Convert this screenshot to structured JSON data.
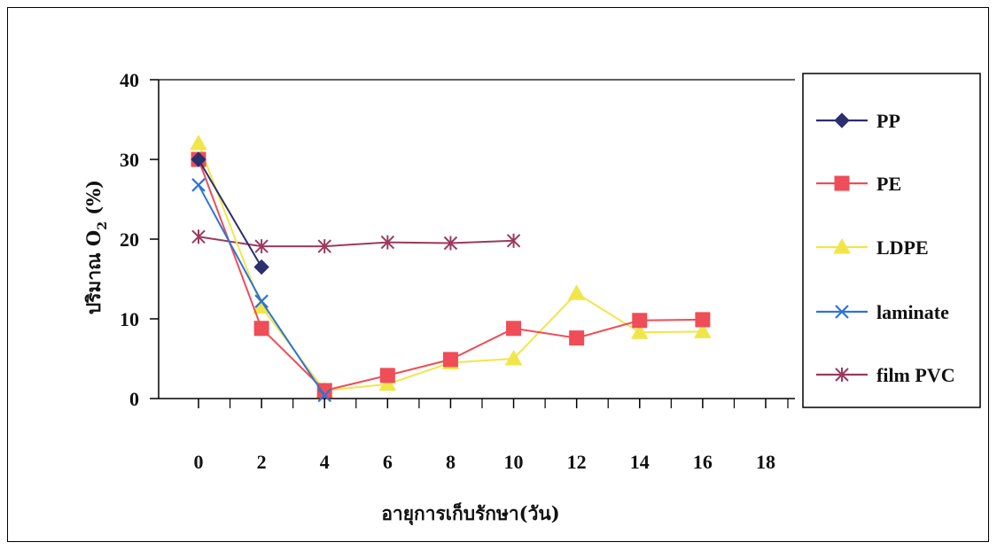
{
  "chart_data": {
    "type": "line",
    "title": "",
    "xlabel": "อายุการเก็บรักษา(วัน)",
    "ylabel_prefix": "ปริมาณ O",
    "ylabel_sub": "2",
    "ylabel_suffix": " (%)",
    "x_ticks": [
      "0",
      "2",
      "4",
      "6",
      "8",
      "10",
      "12",
      "14",
      "16",
      "18"
    ],
    "y_ticks": [
      "0",
      "10",
      "20",
      "30",
      "40"
    ],
    "xlim": [
      0,
      18
    ],
    "ylim": [
      0,
      40
    ],
    "grid": false,
    "legend_position": "right",
    "series": [
      {
        "name": "PP",
        "color": "#2b2f6e",
        "marker": "diamond",
        "points": [
          [
            0,
            30.0
          ],
          [
            2,
            16.5
          ]
        ]
      },
      {
        "name": "PE",
        "color": "#ef4d57",
        "marker": "square",
        "points": [
          [
            0,
            30.0
          ],
          [
            2,
            8.8
          ],
          [
            4,
            1.0
          ],
          [
            6,
            2.9
          ],
          [
            8,
            4.9
          ],
          [
            10,
            8.8
          ],
          [
            12,
            7.6
          ],
          [
            14,
            9.8
          ],
          [
            16,
            9.9
          ]
        ]
      },
      {
        "name": "LDPE",
        "color": "#f0e64a",
        "marker": "triangle",
        "points": [
          [
            0,
            32.0
          ],
          [
            2,
            11.5
          ],
          [
            4,
            1.0
          ],
          [
            6,
            1.8
          ],
          [
            8,
            4.5
          ],
          [
            10,
            5.0
          ],
          [
            12,
            13.2
          ],
          [
            14,
            8.3
          ],
          [
            16,
            8.4
          ]
        ]
      },
      {
        "name": "laminate",
        "color": "#2f73d6",
        "marker": "x",
        "points": [
          [
            0,
            26.8
          ],
          [
            2,
            12.2
          ],
          [
            4,
            0.4
          ]
        ]
      },
      {
        "name": "film PVC",
        "color": "#9a3a5e",
        "marker": "star",
        "points": [
          [
            0,
            20.3
          ],
          [
            2,
            19.1
          ],
          [
            4,
            19.1
          ],
          [
            6,
            19.6
          ],
          [
            8,
            19.5
          ],
          [
            10,
            19.8
          ]
        ]
      }
    ]
  }
}
